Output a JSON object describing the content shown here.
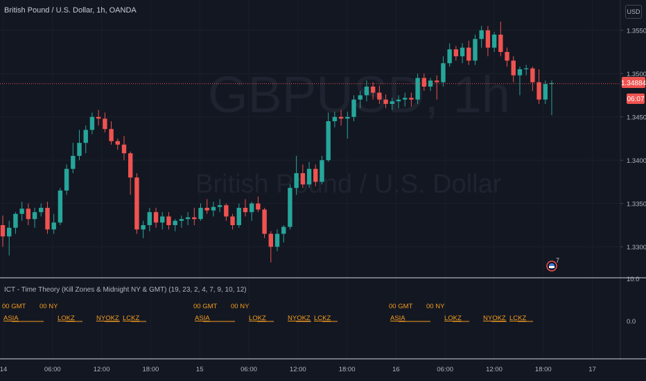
{
  "header": {
    "symbol_title": "British Pound / U.S. Dollar, 1h, OANDA",
    "currency_button": "USD"
  },
  "watermark": {
    "ticker": "GBPUSD, 1h",
    "name": "British Pound / U.S. Dollar"
  },
  "colors": {
    "bg": "#131722",
    "up": "#26a69a",
    "down": "#ef5350",
    "grid": "#1f2330",
    "axis_text": "#b2b5be",
    "session_label": "#f59d1e",
    "last_price_bg": "#ef5350"
  },
  "price_axis": {
    "ticks": [
      "1.35500",
      "1.35000",
      "1.34500",
      "1.34000",
      "1.33500",
      "1.33000"
    ]
  },
  "last_price": {
    "value": "1.34884",
    "countdown": "06:07",
    "price": 1.34884
  },
  "time_axis": {
    "labels": [
      "14",
      "06:00",
      "12:00",
      "18:00",
      "15",
      "06:00",
      "12:00",
      "18:00",
      "16",
      "06:00",
      "12:00",
      "18:00",
      "17"
    ]
  },
  "events_badge": {
    "count": "7"
  },
  "indicator": {
    "title": "ICT - Time Theory (Kill Zones & Midnight NY & GMT) (19, 23, 2, 4, 7, 9, 10, 12)",
    "axis_ticks": [
      "10.0",
      "0.0"
    ],
    "labels": [
      {
        "text": "00 GMT",
        "row": 1
      },
      {
        "text": "00 NY",
        "row": 1
      },
      {
        "text": "ASIA",
        "row": 2
      },
      {
        "text": "LOKZ",
        "row": 2
      },
      {
        "text": "NYOKZ",
        "row": 2
      },
      {
        "text": "LCKZ",
        "row": 2
      },
      {
        "text": "00 GMT",
        "row": 1
      },
      {
        "text": "00 NY",
        "row": 1
      },
      {
        "text": "ASIA",
        "row": 2
      },
      {
        "text": "LOKZ",
        "row": 2
      },
      {
        "text": "NYOKZ",
        "row": 2
      },
      {
        "text": "LCKZ",
        "row": 2
      },
      {
        "text": "00 GMT",
        "row": 1
      },
      {
        "text": "00 NY",
        "row": 1
      },
      {
        "text": "ASIA",
        "row": 2
      },
      {
        "text": "LOKZ",
        "row": 2
      },
      {
        "text": "NYOKZ",
        "row": 2
      },
      {
        "text": "LCKZ",
        "row": 2
      }
    ]
  },
  "chart_data": {
    "type": "candlestick",
    "title": "British Pound / U.S. Dollar, 1h, OANDA",
    "ylim": [
      1.3265,
      1.3585
    ],
    "x_ticks": [
      "14",
      "06:00",
      "12:00",
      "18:00",
      "15",
      "06:00",
      "12:00",
      "18:00",
      "16",
      "06:00",
      "12:00",
      "18:00",
      "17"
    ],
    "candles": [
      [
        1.3325,
        1.3336,
        1.33,
        1.3312
      ],
      [
        1.3312,
        1.333,
        1.329,
        1.3322
      ],
      [
        1.3322,
        1.334,
        1.3315,
        1.3338
      ],
      [
        1.3338,
        1.3352,
        1.333,
        1.3344
      ],
      [
        1.3344,
        1.335,
        1.3325,
        1.3332
      ],
      [
        1.3332,
        1.3345,
        1.3322,
        1.334
      ],
      [
        1.334,
        1.335,
        1.3335,
        1.3345
      ],
      [
        1.3345,
        1.3352,
        1.3315,
        1.332
      ],
      [
        1.332,
        1.3338,
        1.3315,
        1.3328
      ],
      [
        1.3328,
        1.3368,
        1.3325,
        1.3365
      ],
      [
        1.3365,
        1.3395,
        1.336,
        1.339
      ],
      [
        1.339,
        1.342,
        1.3385,
        1.3405
      ],
      [
        1.3405,
        1.3435,
        1.34,
        1.342
      ],
      [
        1.342,
        1.344,
        1.3408,
        1.3435
      ],
      [
        1.3435,
        1.3455,
        1.343,
        1.345
      ],
      [
        1.345,
        1.3458,
        1.344,
        1.3448
      ],
      [
        1.3448,
        1.3455,
        1.3432,
        1.3436
      ],
      [
        1.3436,
        1.3445,
        1.3418,
        1.3422
      ],
      [
        1.3422,
        1.3425,
        1.3412,
        1.3418
      ],
      [
        1.3418,
        1.3428,
        1.34,
        1.3408
      ],
      [
        1.3408,
        1.341,
        1.336,
        1.338
      ],
      [
        1.338,
        1.3385,
        1.3315,
        1.332
      ],
      [
        1.332,
        1.333,
        1.331,
        1.3325
      ],
      [
        1.3325,
        1.3345,
        1.3318,
        1.334
      ],
      [
        1.334,
        1.3345,
        1.3322,
        1.3328
      ],
      [
        1.3328,
        1.334,
        1.332,
        1.3335
      ],
      [
        1.3335,
        1.334,
        1.332,
        1.3325
      ],
      [
        1.3325,
        1.3332,
        1.3318,
        1.333
      ],
      [
        1.333,
        1.3336,
        1.3322,
        1.3332
      ],
      [
        1.3332,
        1.334,
        1.3325,
        1.3334
      ],
      [
        1.3334,
        1.3345,
        1.3325,
        1.3332
      ],
      [
        1.3332,
        1.335,
        1.333,
        1.3345
      ],
      [
        1.3345,
        1.3355,
        1.3338,
        1.3342
      ],
      [
        1.3342,
        1.3352,
        1.3335,
        1.3346
      ],
      [
        1.3346,
        1.3355,
        1.334,
        1.3348
      ],
      [
        1.3348,
        1.335,
        1.333,
        1.3335
      ],
      [
        1.3335,
        1.3338,
        1.332,
        1.3325
      ],
      [
        1.3325,
        1.335,
        1.3322,
        1.3345
      ],
      [
        1.3345,
        1.3355,
        1.3335,
        1.334
      ],
      [
        1.334,
        1.3352,
        1.333,
        1.335
      ],
      [
        1.335,
        1.3358,
        1.334,
        1.3343
      ],
      [
        1.3343,
        1.3345,
        1.331,
        1.3315
      ],
      [
        1.3315,
        1.3318,
        1.3282,
        1.33
      ],
      [
        1.33,
        1.332,
        1.3295,
        1.3315
      ],
      [
        1.3315,
        1.3325,
        1.3305,
        1.3323
      ],
      [
        1.3323,
        1.3372,
        1.332,
        1.3368
      ],
      [
        1.3368,
        1.3405,
        1.336,
        1.3385
      ],
      [
        1.3385,
        1.3395,
        1.3368,
        1.3372
      ],
      [
        1.3372,
        1.3398,
        1.3368,
        1.339
      ],
      [
        1.339,
        1.3395,
        1.337,
        1.3375
      ],
      [
        1.3375,
        1.3405,
        1.3372,
        1.34
      ],
      [
        1.34,
        1.3455,
        1.3398,
        1.3445
      ],
      [
        1.3445,
        1.3456,
        1.3438,
        1.345
      ],
      [
        1.345,
        1.3458,
        1.344,
        1.3448
      ],
      [
        1.3448,
        1.3456,
        1.3425,
        1.345
      ],
      [
        1.345,
        1.3475,
        1.3445,
        1.347
      ],
      [
        1.347,
        1.348,
        1.346,
        1.3475
      ],
      [
        1.3475,
        1.3492,
        1.3468,
        1.3485
      ],
      [
        1.3485,
        1.349,
        1.347,
        1.3478
      ],
      [
        1.3478,
        1.3486,
        1.3465,
        1.347
      ],
      [
        1.347,
        1.3476,
        1.346,
        1.3465
      ],
      [
        1.3465,
        1.3472,
        1.3458,
        1.3468
      ],
      [
        1.3468,
        1.3475,
        1.346,
        1.347
      ],
      [
        1.347,
        1.3478,
        1.3462,
        1.3472
      ],
      [
        1.3472,
        1.3478,
        1.3462,
        1.347
      ],
      [
        1.347,
        1.35,
        1.3465,
        1.3495
      ],
      [
        1.3495,
        1.35,
        1.348,
        1.3485
      ],
      [
        1.3485,
        1.3495,
        1.348,
        1.3492
      ],
      [
        1.3492,
        1.3498,
        1.347,
        1.349
      ],
      [
        1.349,
        1.352,
        1.3485,
        1.3512
      ],
      [
        1.3512,
        1.3535,
        1.3508,
        1.3528
      ],
      [
        1.3528,
        1.3532,
        1.3515,
        1.352
      ],
      [
        1.352,
        1.3535,
        1.3512,
        1.353
      ],
      [
        1.353,
        1.3538,
        1.351,
        1.3515
      ],
      [
        1.3515,
        1.3545,
        1.351,
        1.354
      ],
      [
        1.354,
        1.3555,
        1.353,
        1.355
      ],
      [
        1.355,
        1.3555,
        1.352,
        1.353
      ],
      [
        1.353,
        1.3548,
        1.3525,
        1.3545
      ],
      [
        1.3545,
        1.356,
        1.352,
        1.3525
      ],
      [
        1.3525,
        1.353,
        1.3508,
        1.3515
      ],
      [
        1.3515,
        1.352,
        1.349,
        1.3498
      ],
      [
        1.3498,
        1.3508,
        1.3475,
        1.3505
      ],
      [
        1.3505,
        1.351,
        1.3498,
        1.3506
      ],
      [
        1.3506,
        1.3508,
        1.348,
        1.349
      ],
      [
        1.349,
        1.3505,
        1.3465,
        1.347
      ],
      [
        1.347,
        1.3492,
        1.3465,
        1.3488
      ],
      [
        1.3488,
        1.3492,
        1.3452,
        1.3489
      ]
    ]
  }
}
